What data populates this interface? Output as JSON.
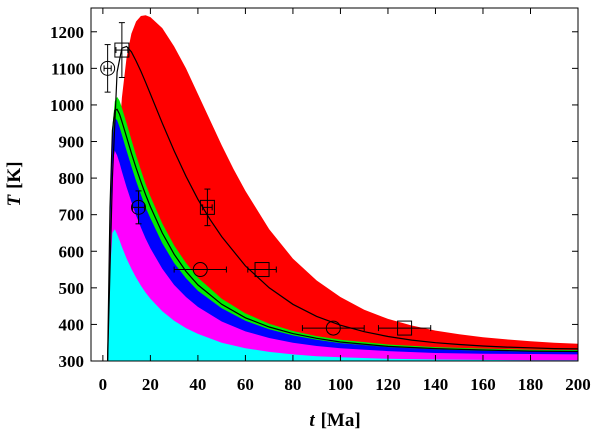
{
  "chart_data": {
    "type": "area",
    "xlabel": {
      "symbol": "t",
      "unit": "[Ma]"
    },
    "ylabel": {
      "symbol": "T",
      "unit": "[K]"
    },
    "xlim": [
      -5,
      200
    ],
    "ylim": [
      300,
      1265
    ],
    "x_ticks": [
      0,
      20,
      40,
      60,
      80,
      100,
      120,
      140,
      160,
      180,
      200
    ],
    "y_ticks": [
      300,
      400,
      500,
      600,
      700,
      800,
      900,
      1000,
      1100,
      1200
    ],
    "grid": false,
    "legend": "none",
    "bands": [
      {
        "color": "#ff0000",
        "x": [
          2,
          4,
          6,
          8,
          10,
          12,
          14,
          16,
          18,
          20,
          25,
          30,
          35,
          40,
          45,
          50,
          55,
          60,
          70,
          80,
          90,
          100,
          110,
          120,
          130,
          140,
          150,
          160,
          170,
          180,
          190,
          200
        ],
        "y": [
          300,
          560,
          840,
          1020,
          1130,
          1195,
          1228,
          1243,
          1245,
          1240,
          1210,
          1160,
          1100,
          1030,
          960,
          890,
          825,
          765,
          660,
          580,
          520,
          475,
          440,
          415,
          397,
          383,
          373,
          365,
          359,
          354,
          350,
          347
        ]
      },
      {
        "color": "#00ee00",
        "x": [
          2,
          3,
          4,
          5,
          6,
          7,
          8,
          10,
          12,
          14,
          16,
          18,
          20,
          25,
          30,
          35,
          40,
          50,
          60,
          70,
          80,
          90,
          100,
          120,
          140,
          160,
          180,
          200
        ],
        "y": [
          300,
          720,
          940,
          1010,
          1022,
          1012,
          992,
          950,
          905,
          862,
          822,
          784,
          750,
          676,
          616,
          568,
          528,
          470,
          430,
          402,
          382,
          368,
          358,
          345,
          338,
          334,
          331,
          330
        ]
      },
      {
        "color": "#0000ff",
        "x": [
          2,
          3,
          4,
          5,
          6,
          7,
          8,
          10,
          12,
          14,
          16,
          18,
          20,
          25,
          30,
          35,
          40,
          50,
          60,
          70,
          80,
          90,
          100,
          120,
          140,
          160,
          180,
          200
        ],
        "y": [
          300,
          700,
          910,
          965,
          958,
          940,
          918,
          875,
          832,
          792,
          755,
          720,
          690,
          622,
          568,
          526,
          492,
          444,
          410,
          387,
          370,
          358,
          349,
          338,
          332,
          328,
          326,
          325
        ]
      },
      {
        "color": "#ff00ff",
        "x": [
          2,
          3,
          4,
          5,
          6,
          7,
          8,
          10,
          12,
          14,
          16,
          18,
          20,
          25,
          30,
          35,
          40,
          50,
          60,
          70,
          80,
          90,
          100,
          120,
          140,
          160,
          180,
          200
        ],
        "y": [
          300,
          640,
          840,
          875,
          862,
          842,
          818,
          775,
          735,
          698,
          665,
          635,
          608,
          552,
          508,
          475,
          448,
          408,
          381,
          363,
          350,
          341,
          335,
          327,
          322,
          320,
          319,
          318
        ]
      },
      {
        "color": "#00ffff",
        "x": [
          2,
          3,
          4,
          5,
          6,
          7,
          8,
          10,
          12,
          14,
          16,
          18,
          20,
          25,
          30,
          35,
          40,
          50,
          60,
          70,
          80,
          90,
          100,
          120,
          140,
          160,
          180,
          200
        ],
        "y": [
          300,
          540,
          650,
          660,
          646,
          630,
          612,
          580,
          552,
          528,
          506,
          487,
          470,
          436,
          410,
          390,
          374,
          350,
          335,
          325,
          318,
          313,
          310,
          306,
          304,
          303,
          302,
          302
        ]
      }
    ],
    "curves": [
      {
        "color": "#000000",
        "x": [
          2,
          3,
          4,
          5,
          6,
          7,
          8,
          10,
          12,
          14,
          16,
          18,
          20,
          25,
          30,
          35,
          40,
          50,
          60,
          70,
          80,
          90,
          100,
          120,
          140,
          160,
          180,
          200
        ],
        "y": [
          300,
          720,
          930,
          985,
          988,
          975,
          955,
          912,
          868,
          828,
          790,
          755,
          722,
          650,
          592,
          545,
          508,
          455,
          418,
          393,
          375,
          362,
          352,
          340,
          334,
          330,
          327,
          326
        ]
      },
      {
        "color": "#000000",
        "x": [
          2,
          4,
          6,
          8,
          10,
          12,
          14,
          16,
          18,
          20,
          25,
          30,
          35,
          40,
          45,
          50,
          60,
          70,
          80,
          90,
          100,
          110,
          120,
          130,
          140,
          150,
          160,
          170,
          180,
          190,
          200
        ],
        "y": [
          300,
          800,
          1090,
          1155,
          1160,
          1145,
          1120,
          1092,
          1062,
          1030,
          950,
          875,
          805,
          742,
          688,
          640,
          560,
          500,
          455,
          422,
          398,
          380,
          367,
          357,
          350,
          345,
          341,
          338,
          336,
          334,
          333
        ]
      }
    ],
    "points_circle": [
      {
        "x": 2,
        "y": 1100,
        "xerr": 1.5,
        "yerr": 65
      },
      {
        "x": 15,
        "y": 720,
        "xerr": 2.5,
        "yerr": 45
      },
      {
        "x": 41,
        "y": 550,
        "xerr": 11,
        "yerr": 0
      },
      {
        "x": 97,
        "y": 390,
        "xerr": 13,
        "yerr": 0
      }
    ],
    "points_square": [
      {
        "x": 8,
        "y": 1150,
        "xerr": 2.5,
        "yerr": 75
      },
      {
        "x": 44,
        "y": 720,
        "xerr": 2,
        "yerr": 50
      },
      {
        "x": 67,
        "y": 550,
        "xerr": 6,
        "yerr": 0
      },
      {
        "x": 127,
        "y": 390,
        "xerr": 11,
        "yerr": 0
      }
    ]
  }
}
